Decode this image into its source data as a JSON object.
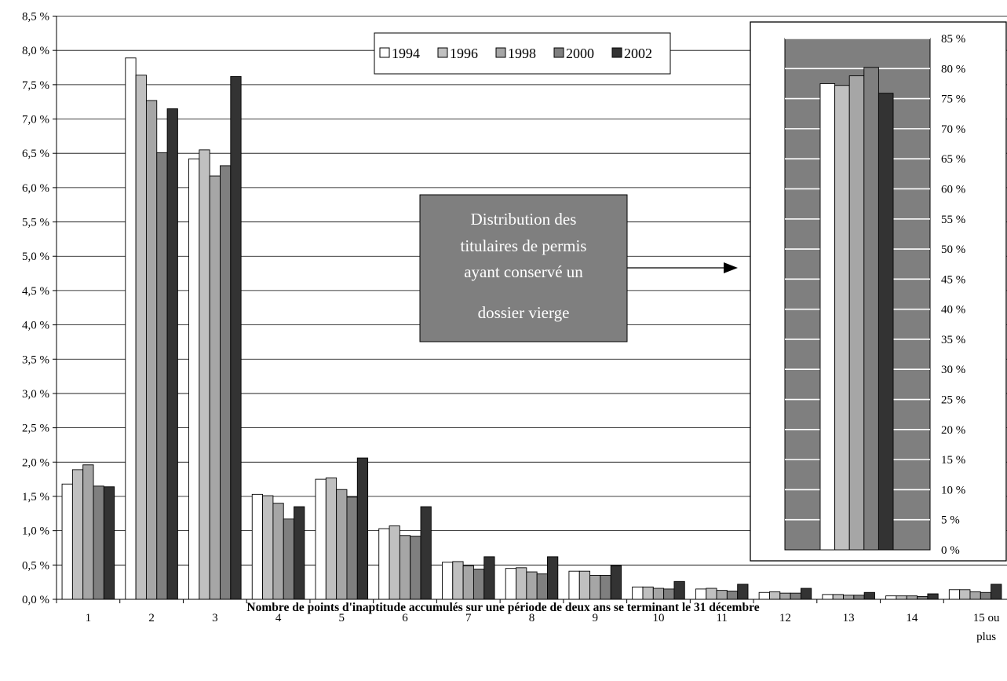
{
  "chart_data": [
    {
      "type": "bar",
      "categories": [
        "1",
        "2",
        "3",
        "4",
        "5",
        "6",
        "7",
        "8",
        "9",
        "10",
        "11",
        "12",
        "13",
        "14",
        "15 ou plus"
      ],
      "xlabel": "Nombre de points d'inaptitude accumulés sur une période de deux ans se terminant le 31 décembre",
      "ylabel": "",
      "ylim": [
        0,
        8.5
      ],
      "yticks": [
        "0,0 %",
        "0,5 %",
        "1,0 %",
        "1,5 %",
        "2,0 %",
        "2,5 %",
        "3,0 %",
        "3,5 %",
        "4,0 %",
        "4,5 %",
        "5,0 %",
        "5,5 %",
        "6,0 %",
        "6,5 %",
        "7,0 %",
        "7,5 %",
        "8,0 %",
        "8,5 %"
      ],
      "grid": true,
      "legend": "top-center",
      "series": [
        {
          "name": "1994",
          "color": "#ffffff",
          "values": [
            1.68,
            7.89,
            6.42,
            1.53,
            1.75,
            1.03,
            0.54,
            0.45,
            0.41,
            0.18,
            0.15,
            0.1,
            0.07,
            0.05,
            0.14
          ]
        },
        {
          "name": "1996",
          "color": "#c0c0c0",
          "values": [
            1.89,
            7.64,
            6.55,
            1.51,
            1.77,
            1.07,
            0.55,
            0.46,
            0.41,
            0.18,
            0.16,
            0.11,
            0.07,
            0.05,
            0.14
          ]
        },
        {
          "name": "1998",
          "color": "#a6a6a6",
          "values": [
            1.96,
            7.27,
            6.17,
            1.4,
            1.6,
            0.93,
            0.49,
            0.4,
            0.35,
            0.16,
            0.13,
            0.09,
            0.06,
            0.05,
            0.11
          ]
        },
        {
          "name": "2000",
          "color": "#7f7f7f",
          "values": [
            1.65,
            6.51,
            6.32,
            1.17,
            1.49,
            0.92,
            0.44,
            0.37,
            0.35,
            0.15,
            0.12,
            0.09,
            0.06,
            0.04,
            0.1
          ]
        },
        {
          "name": "2002",
          "color": "#333333",
          "values": [
            1.64,
            7.15,
            7.62,
            1.35,
            2.06,
            1.35,
            0.62,
            0.62,
            0.49,
            0.26,
            0.22,
            0.16,
            0.1,
            0.08,
            0.22
          ]
        }
      ]
    },
    {
      "type": "bar",
      "categories": [
        ""
      ],
      "ylim": [
        0,
        85
      ],
      "yticks": [
        "0 %",
        "5 %",
        "10 %",
        "15 %",
        "20 %",
        "25 %",
        "30 %",
        "35 %",
        "40 %",
        "45 %",
        "50 %",
        "55 %",
        "60 %",
        "65 %",
        "70 %",
        "75 %",
        "80 %",
        "85 %"
      ],
      "plot_background": "#7f7f7f",
      "series": [
        {
          "name": "1994",
          "values": [
            77.5
          ]
        },
        {
          "name": "1996",
          "values": [
            77.2
          ]
        },
        {
          "name": "1998",
          "values": [
            78.8
          ]
        },
        {
          "name": "2000",
          "values": [
            80.2
          ]
        },
        {
          "name": "2002",
          "values": [
            75.9
          ]
        }
      ]
    }
  ],
  "callout": {
    "lines": [
      "Distribution des",
      "titulaires de permis",
      "ayant conservé un",
      "dossier vierge"
    ],
    "background": "#7f7f7f"
  }
}
